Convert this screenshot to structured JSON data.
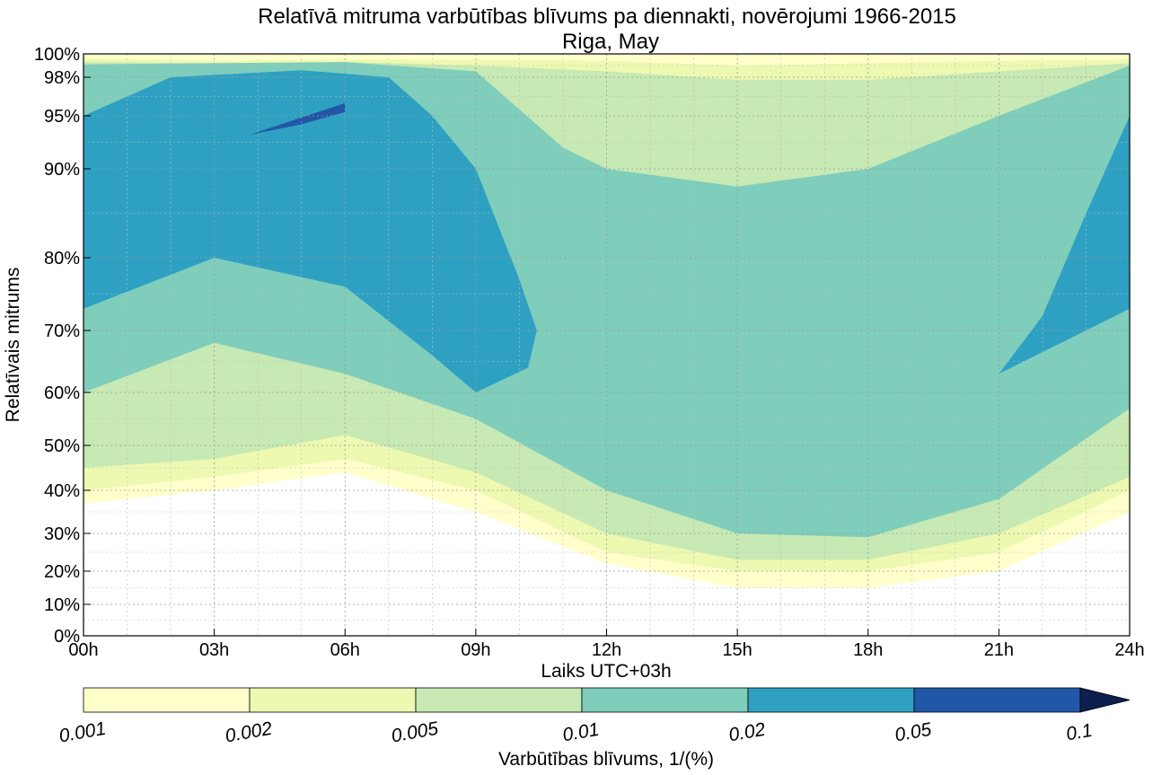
{
  "chart_data": {
    "type": "contourf",
    "title": "Relatīvā mitruma varbūtības blīvums pa diennakti, novērojumi 1966-2015",
    "subtitle": "Riga, May",
    "xlabel": "Laiks UTC+03h",
    "ylabel": "Relatīvais mitrums",
    "x_ticks": [
      "00h",
      "03h",
      "06h",
      "09h",
      "12h",
      "15h",
      "18h",
      "21h",
      "24h"
    ],
    "x_tick_values": [
      0,
      3,
      6,
      9,
      12,
      15,
      18,
      21,
      24
    ],
    "x_range": [
      0,
      24
    ],
    "y_ticks": [
      "0%",
      "10%",
      "20%",
      "30%",
      "40%",
      "50%",
      "60%",
      "70%",
      "80%",
      "90%",
      "95%",
      "98%",
      "100%"
    ],
    "y_tick_values": [
      0,
      10,
      20,
      30,
      40,
      50,
      60,
      70,
      80,
      90,
      95,
      98,
      100
    ],
    "y_range": [
      0,
      100
    ],
    "y_scale": "nonlinear (expanded toward 100%)",
    "grid": true,
    "colorbar": {
      "label": "Varbūtības blīvums, 1/(%)",
      "levels": [
        "0.001",
        "0.002",
        "0.005",
        "0.01",
        "0.02",
        "0.05",
        "0.1"
      ],
      "colors": [
        "#ffffcc",
        "#edf8b1",
        "#c7e9b4",
        "#7fcdbb",
        "#2ea1c3",
        "#2256a7",
        "#0c1f4e"
      ],
      "extend": "max",
      "placement": "bottom"
    },
    "bands": [
      {
        "level": "0.001",
        "lower": [
          [
            0,
            37
          ],
          [
            3,
            40
          ],
          [
            6,
            44
          ],
          [
            9,
            35
          ],
          [
            12,
            22
          ],
          [
            15,
            15
          ],
          [
            18,
            15
          ],
          [
            21,
            20
          ],
          [
            24,
            35
          ]
        ],
        "upper": [
          [
            0,
            100
          ],
          [
            24,
            100
          ]
        ]
      },
      {
        "level": "0.002",
        "lower": [
          [
            0,
            40
          ],
          [
            3,
            43
          ],
          [
            6,
            47
          ],
          [
            9,
            40
          ],
          [
            12,
            25
          ],
          [
            15,
            20
          ],
          [
            18,
            20
          ],
          [
            21,
            25
          ],
          [
            24,
            40
          ]
        ],
        "upper": [
          [
            0,
            99.6
          ],
          [
            3,
            99.4
          ],
          [
            6,
            99.5
          ],
          [
            9,
            99.5
          ],
          [
            12,
            99.4
          ],
          [
            15,
            99
          ],
          [
            18,
            99.2
          ],
          [
            21,
            99.4
          ],
          [
            24,
            99.5
          ]
        ]
      },
      {
        "level": "0.005",
        "lower": [
          [
            0,
            45
          ],
          [
            3,
            47
          ],
          [
            6,
            52
          ],
          [
            9,
            44
          ],
          [
            12,
            30
          ],
          [
            15,
            23
          ],
          [
            18,
            23
          ],
          [
            21,
            30
          ],
          [
            24,
            43
          ]
        ],
        "upper": [
          [
            0,
            99.3
          ],
          [
            3,
            99.2
          ],
          [
            6,
            99.3
          ],
          [
            9,
            99
          ],
          [
            12,
            98.5
          ],
          [
            15,
            97.8
          ],
          [
            18,
            97.8
          ],
          [
            21,
            98.5
          ],
          [
            24,
            99.2
          ]
        ]
      },
      {
        "level": "0.01",
        "lower": [
          [
            0,
            60
          ],
          [
            3,
            68
          ],
          [
            6,
            63
          ],
          [
            9,
            55
          ],
          [
            12,
            40
          ],
          [
            15,
            30
          ],
          [
            18,
            29
          ],
          [
            21,
            38
          ],
          [
            24,
            57
          ]
        ],
        "upper": [
          [
            0,
            99.1
          ],
          [
            3,
            99.2
          ],
          [
            6,
            99.3
          ],
          [
            9,
            98.5
          ],
          [
            11,
            92
          ],
          [
            12,
            90
          ],
          [
            15,
            88
          ],
          [
            18,
            90
          ],
          [
            21,
            95
          ],
          [
            24,
            99
          ]
        ]
      },
      {
        "level": "0.02",
        "lower": [
          [
            0,
            73
          ],
          [
            3,
            80
          ],
          [
            6,
            76
          ],
          [
            8,
            66
          ],
          [
            9,
            60
          ],
          [
            12,
            54
          ],
          [
            15,
            53
          ],
          [
            18,
            52
          ],
          [
            21,
            63
          ],
          [
            24,
            73
          ]
        ],
        "upper": [
          [
            0,
            95
          ],
          [
            2,
            98
          ],
          [
            5,
            98.6
          ],
          [
            7,
            98
          ],
          [
            8,
            95
          ],
          [
            9,
            90
          ],
          [
            10,
            77
          ],
          [
            10.4,
            70
          ],
          [
            10.2,
            64
          ],
          [
            9,
            60
          ],
          [
            12,
            54
          ],
          [
            15,
            53
          ],
          [
            18,
            52
          ],
          [
            21,
            63
          ],
          [
            22,
            72
          ],
          [
            23,
            85
          ],
          [
            24,
            95
          ]
        ]
      },
      {
        "level": "0.05",
        "lower": [
          [
            3.8,
            93.2
          ],
          [
            5,
            94.2
          ],
          [
            6,
            95.3
          ]
        ],
        "upper": [
          [
            3.8,
            93.2
          ],
          [
            6,
            96
          ],
          [
            6,
            95.3
          ]
        ]
      }
    ]
  }
}
